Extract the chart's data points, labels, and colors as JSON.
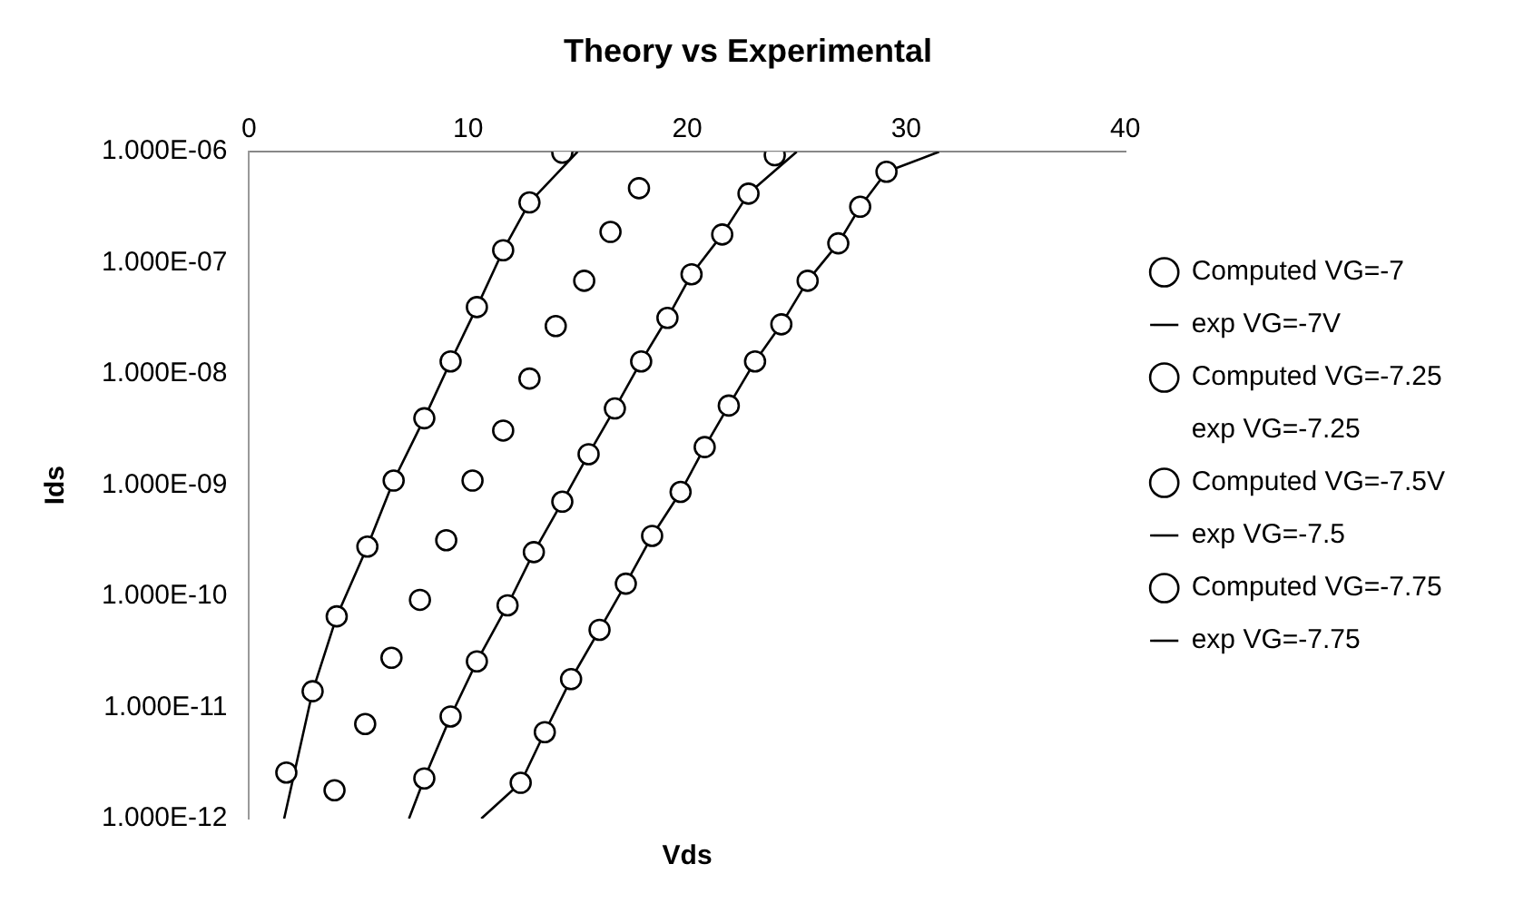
{
  "chart_data": {
    "type": "scatter",
    "title": "Theory vs Experimental",
    "xlabel": "Vds",
    "ylabel": "Ids",
    "log": "y",
    "grid": false,
    "legend": "right",
    "xlim": [
      0,
      40
    ],
    "xticks": [
      0,
      10,
      20,
      30,
      40
    ],
    "ylim": [
      1e-12,
      1e-06
    ],
    "yticks": [
      {
        "value": 1e-12,
        "label": "1.000E-12"
      },
      {
        "value": 1e-11,
        "label": "1.000E-11"
      },
      {
        "value": 1e-10,
        "label": "1.000E-10"
      },
      {
        "value": 1e-09,
        "label": "1.000E-09"
      },
      {
        "value": 1e-08,
        "label": "1.000E-08"
      },
      {
        "value": 1e-07,
        "label": "1.000E-07"
      },
      {
        "value": 1e-06,
        "label": "1.000E-06"
      }
    ],
    "series": [
      {
        "name": "Computed VG=-7",
        "type": "scatter",
        "marker": "circle",
        "color": "#000000",
        "x": [
          1.7,
          2.9,
          4.0,
          5.4,
          6.6,
          8.0,
          9.2,
          10.4,
          11.6,
          12.8,
          14.3
        ],
        "values": [
          2.6e-12,
          1.4e-11,
          6.6e-11,
          2.8e-10,
          1.1e-09,
          4e-09,
          1.3e-08,
          4e-08,
          1.3e-07,
          3.5e-07,
          9.8e-07
        ]
      },
      {
        "name": "exp VG=-7V",
        "type": "line",
        "marker": "none",
        "line_style": "solid",
        "color": "#000000",
        "x": [
          1.6,
          2.9,
          4.0,
          5.4,
          6.6,
          8.0,
          9.2,
          10.4,
          11.6,
          12.8,
          15.0
        ],
        "values": [
          1e-12,
          1.4e-11,
          6.6e-11,
          2.8e-10,
          1.1e-09,
          4e-09,
          1.3e-08,
          4e-08,
          1.3e-07,
          3.5e-07,
          1e-06
        ]
      },
      {
        "name": "Computed VG=-7.25",
        "type": "scatter",
        "marker": "circle",
        "color": "#000000",
        "x": [
          3.9,
          5.3,
          6.5,
          7.8,
          9.0,
          10.2,
          11.6,
          12.8,
          14.0,
          15.3,
          16.5,
          17.8
        ],
        "values": [
          1.8e-12,
          7.1e-12,
          2.8e-11,
          9.3e-11,
          3.2e-10,
          1.1e-09,
          3.1e-09,
          9.1e-09,
          2.7e-08,
          6.9e-08,
          1.9e-07,
          4.7e-07
        ]
      },
      {
        "name": "exp VG=-7.25",
        "type": "line",
        "marker": "none",
        "line_style": "none",
        "color": "#000000"
      },
      {
        "name": "Computed VG=-7.5V",
        "type": "scatter",
        "marker": "circle",
        "color": "#000000",
        "x": [
          8.0,
          9.2,
          10.4,
          11.8,
          13.0,
          14.3,
          15.5,
          16.7,
          17.9,
          19.1,
          20.2,
          21.6,
          22.8,
          24.0
        ],
        "values": [
          2.3e-12,
          8.3e-12,
          2.6e-11,
          8.3e-11,
          2.5e-10,
          7.1e-10,
          1.9e-09,
          4.9e-09,
          1.3e-08,
          3.2e-08,
          7.9e-08,
          1.8e-07,
          4.2e-07,
          9.3e-07
        ]
      },
      {
        "name": "exp VG=-7.5",
        "type": "line",
        "marker": "none",
        "line_style": "solid",
        "color": "#000000",
        "x": [
          7.3,
          8.0,
          9.2,
          10.4,
          11.8,
          13.0,
          14.3,
          15.5,
          16.7,
          17.9,
          19.1,
          20.2,
          21.6,
          22.8,
          25.0
        ],
        "values": [
          1e-12,
          2.3e-12,
          8.3e-12,
          2.6e-11,
          8.3e-11,
          2.5e-10,
          7.1e-10,
          1.9e-09,
          4.9e-09,
          1.3e-08,
          3.2e-08,
          7.9e-08,
          1.8e-07,
          4.2e-07,
          1e-06
        ]
      },
      {
        "name": "Computed VG=-7.75",
        "type": "scatter",
        "marker": "circle",
        "color": "#000000",
        "x": [
          12.4,
          13.5,
          14.7,
          16.0,
          17.2,
          18.4,
          19.7,
          20.8,
          21.9,
          23.1,
          24.3,
          25.5,
          26.9,
          27.9,
          29.1
        ],
        "values": [
          2.1e-12,
          6e-12,
          1.8e-11,
          5e-11,
          1.3e-10,
          3.5e-10,
          8.7e-10,
          2.2e-09,
          5.2e-09,
          1.3e-08,
          2.8e-08,
          6.9e-08,
          1.5e-07,
          3.2e-07,
          6.6e-07
        ]
      },
      {
        "name": "exp VG=-7.75",
        "type": "line",
        "marker": "none",
        "line_style": "solid",
        "color": "#000000",
        "x": [
          10.6,
          12.4,
          13.5,
          14.7,
          16.0,
          17.2,
          18.4,
          19.7,
          20.8,
          21.9,
          23.1,
          24.3,
          25.5,
          26.9,
          27.9,
          29.1,
          31.5
        ],
        "values": [
          1e-12,
          2.1e-12,
          6e-12,
          1.8e-11,
          5e-11,
          1.3e-10,
          3.5e-10,
          8.7e-10,
          2.2e-09,
          5.2e-09,
          1.3e-08,
          2.8e-08,
          6.9e-08,
          1.5e-07,
          3.2e-07,
          6.6e-07,
          1e-06
        ]
      }
    ]
  }
}
